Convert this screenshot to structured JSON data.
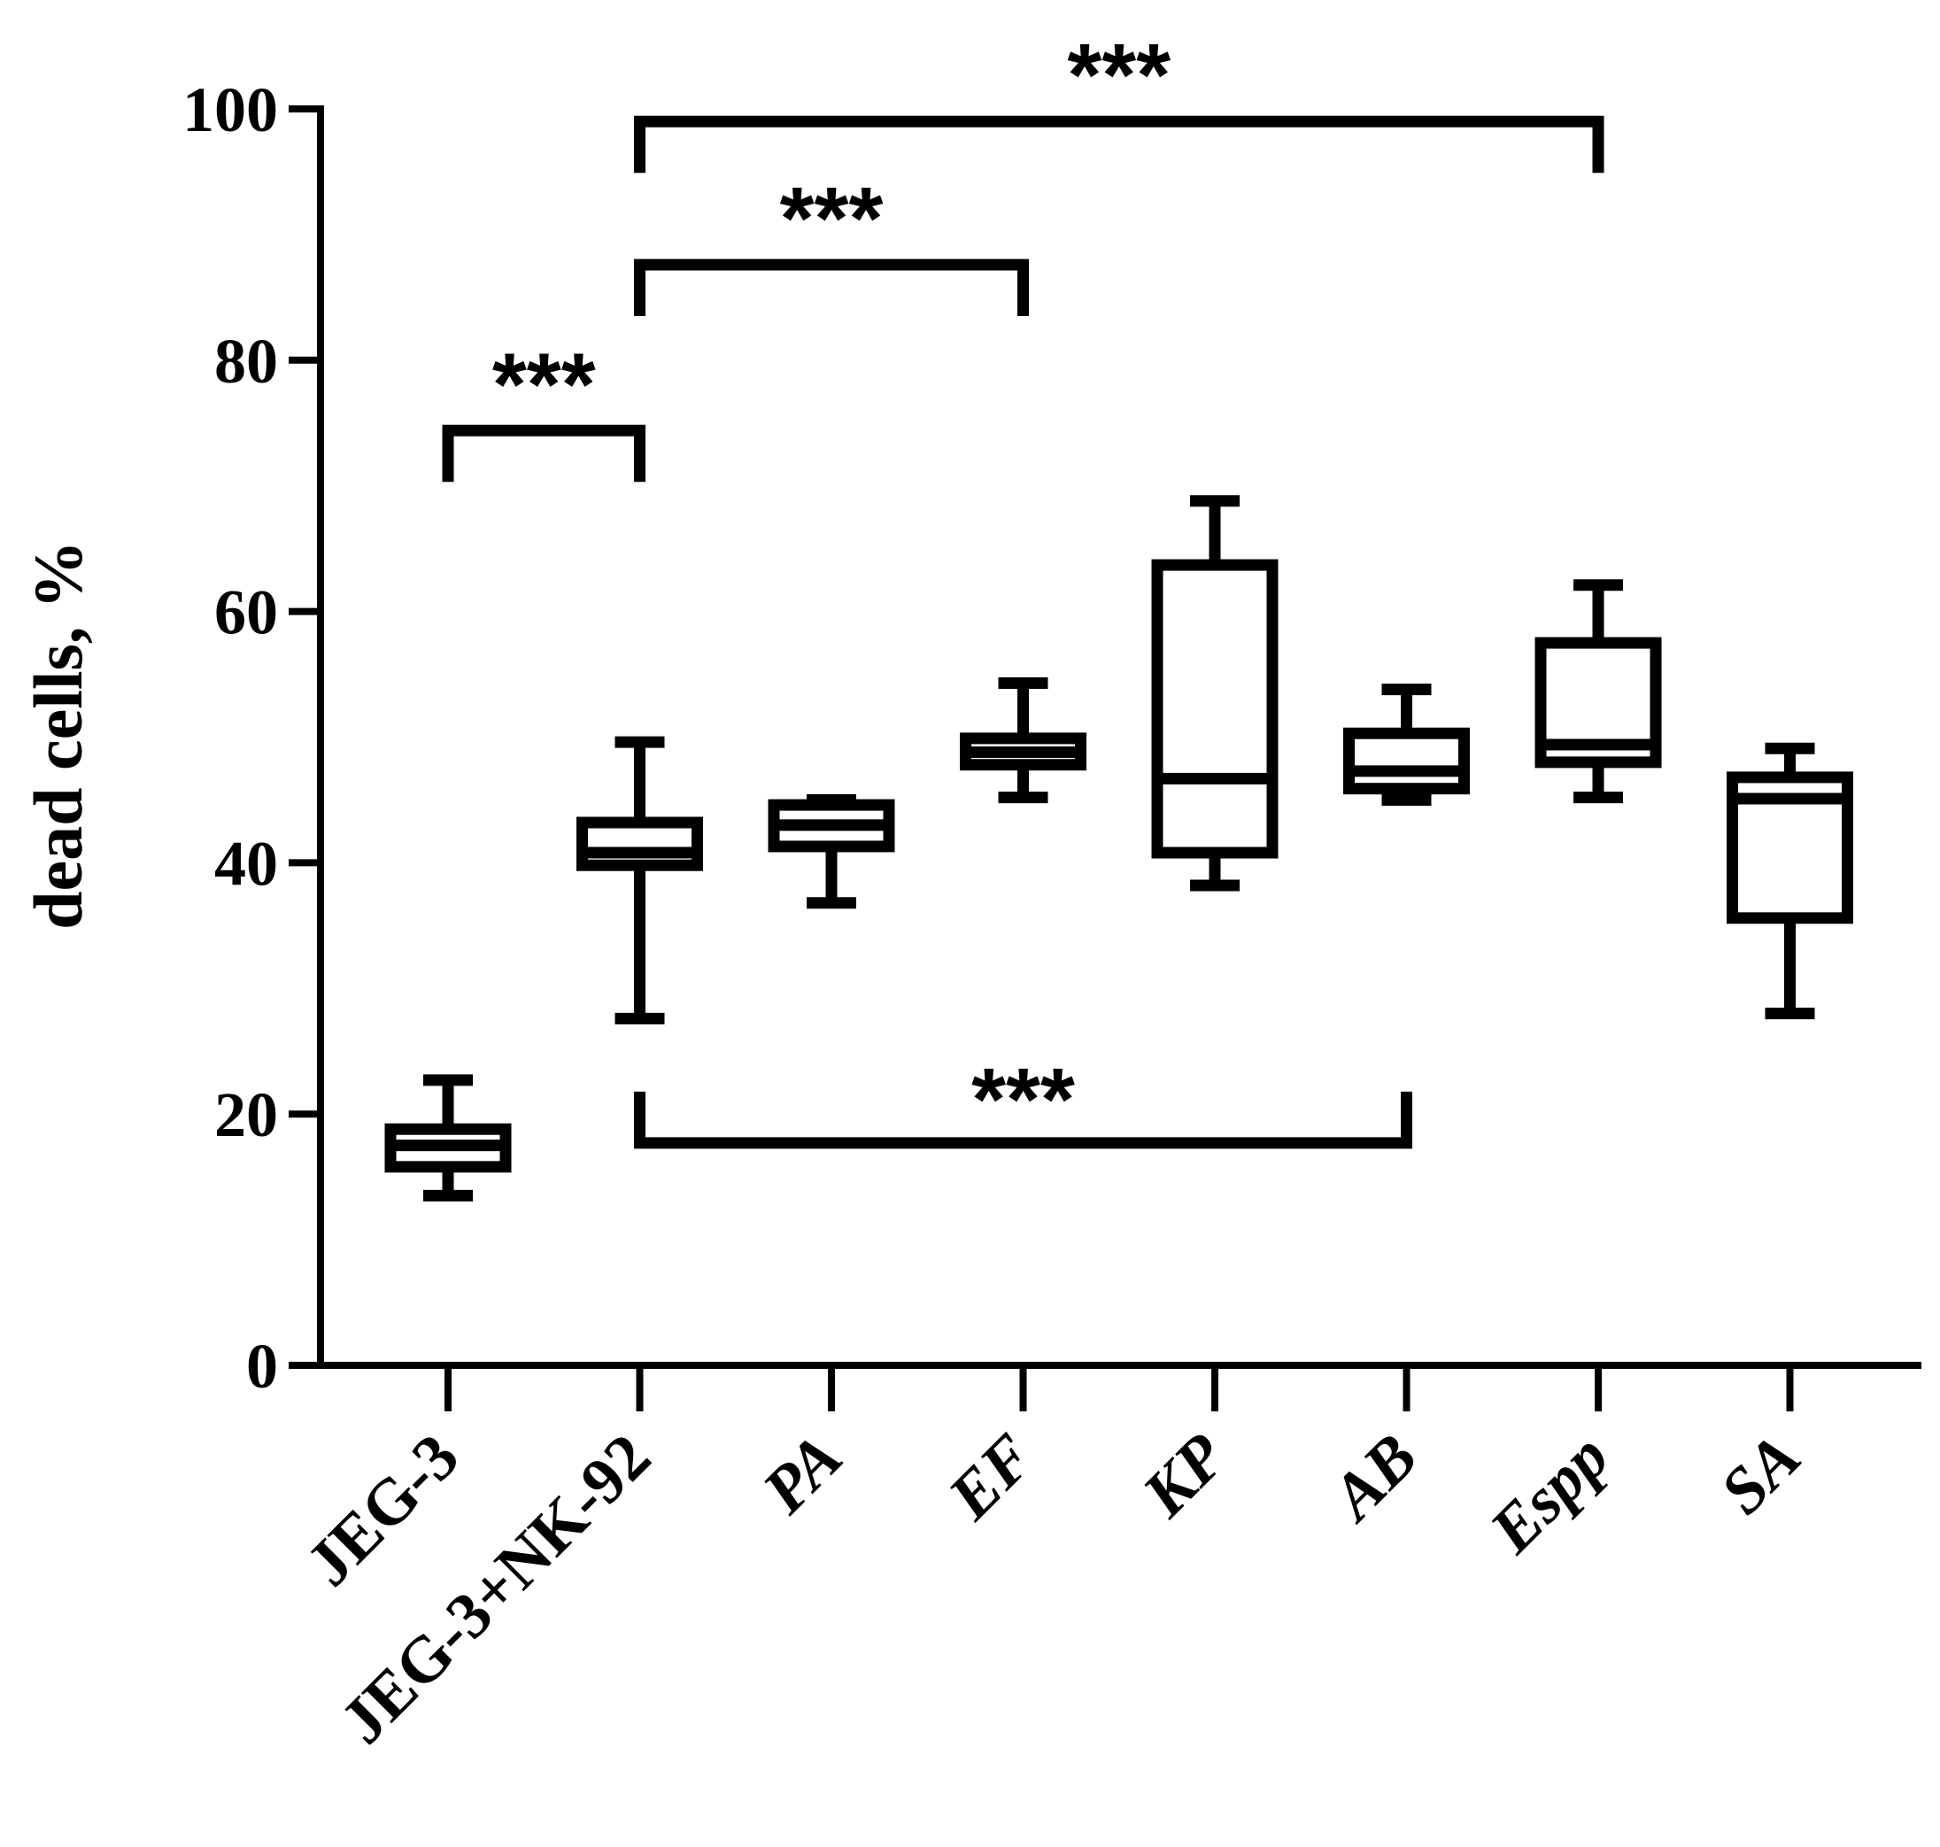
{
  "chart_data": {
    "type": "box",
    "ylabel": "dead cells, %",
    "xlabel": "",
    "ylim": [
      0,
      100
    ],
    "yticks": [
      0,
      20,
      40,
      60,
      80,
      100
    ],
    "categories": [
      {
        "label": "JEG-3",
        "italic": false
      },
      {
        "label": "JEG-3+NK-92",
        "italic": false
      },
      {
        "label": "PA",
        "italic": true
      },
      {
        "label": "EF",
        "italic": true
      },
      {
        "label": "KP",
        "italic": true
      },
      {
        "label": "AB",
        "italic": true
      },
      {
        "label": "Espp",
        "italic": true
      },
      {
        "label": "SA",
        "italic": true
      }
    ],
    "boxes": [
      {
        "min": 13.5,
        "q1": 15.8,
        "median": 17.5,
        "q3": 18.8,
        "max": 22.7
      },
      {
        "min": 27.6,
        "q1": 39.8,
        "median": 40.8,
        "q3": 43.2,
        "max": 49.6
      },
      {
        "min": 36.8,
        "q1": 41.3,
        "median": 43.0,
        "q3": 44.6,
        "max": 45.0
      },
      {
        "min": 45.2,
        "q1": 47.8,
        "median": 48.8,
        "q3": 49.9,
        "max": 54.3
      },
      {
        "min": 38.2,
        "q1": 40.8,
        "median": 46.7,
        "q3": 63.7,
        "max": 68.8
      },
      {
        "min": 45.0,
        "q1": 45.9,
        "median": 47.3,
        "q3": 50.3,
        "max": 53.8
      },
      {
        "min": 45.2,
        "q1": 48.0,
        "median": 49.4,
        "q3": 57.5,
        "max": 62.1
      },
      {
        "min": 28.0,
        "q1": 35.6,
        "median": 45.1,
        "q3": 46.8,
        "max": 49.1
      }
    ],
    "significance": [
      {
        "from": 0,
        "to": 1,
        "y": 74.4,
        "label": "***",
        "direction": "up"
      },
      {
        "from": 1,
        "to": 3,
        "y": 87.6,
        "label": "***",
        "direction": "up"
      },
      {
        "from": 1,
        "to": 6,
        "y": 99.0,
        "label": "***",
        "direction": "up"
      },
      {
        "from": 1,
        "to": 5,
        "y": 17.7,
        "label": "***",
        "direction": "down"
      }
    ]
  }
}
